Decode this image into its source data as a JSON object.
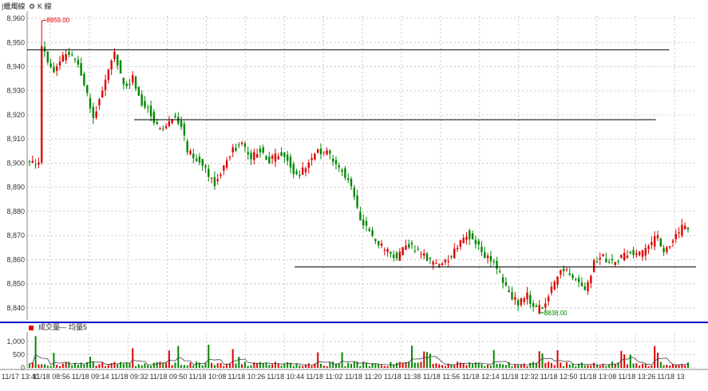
{
  "header": {
    "label_left": "|蠟燭線",
    "label_kline": "K 線",
    "icon": "gear-icon"
  },
  "volume_legend": {
    "volume_label": "成交量",
    "avg_label": "均量5",
    "volume_color": "#dd0000",
    "avg_color": "#444444"
  },
  "chart_data": {
    "type": "candlestick",
    "price_axis": {
      "ticks": [
        "8,960",
        "8,950",
        "8,940",
        "8,930",
        "8,920",
        "8,910",
        "8,900",
        "8,890",
        "8,880",
        "8,870",
        "8,860",
        "8,850",
        "8,840"
      ],
      "ylim": [
        8835,
        8961
      ]
    },
    "volume_axis": {
      "ticks": [
        "1,000",
        "500",
        "0"
      ],
      "ylim": [
        0,
        1300
      ]
    },
    "x_ticks": [
      "11/17 13:40",
      "11/18 08:56",
      "11/18 09:14",
      "11/18 09:32",
      "11/18 09:50",
      "11/18 10:08",
      "11/18 10:26",
      "11/18 10:44",
      "11/18 11:02",
      "11/18 11:20",
      "11/18 11:38",
      "11/18 11:56",
      "11/18 12:14",
      "11/18 12:32",
      "11/18 12:50",
      "11/18 13:08",
      "11/18 13:26",
      "11/18 13"
    ],
    "annotations": {
      "high": "8959.00",
      "low": "8838.00",
      "high_value": 8959,
      "low_value": 8838
    },
    "hlines": [
      {
        "price": 8947,
        "from": 0.0,
        "to": 0.96
      },
      {
        "price": 8918,
        "from": 0.16,
        "to": 0.94
      },
      {
        "price": 8857,
        "from": 0.4,
        "to": 1.0
      }
    ],
    "close_path": [
      [
        0,
        8900
      ],
      [
        3,
        8900
      ],
      [
        4,
        8948
      ],
      [
        8,
        8937
      ],
      [
        12,
        8946
      ],
      [
        16,
        8942
      ],
      [
        19,
        8928
      ],
      [
        21,
        8919
      ],
      [
        24,
        8930
      ],
      [
        28,
        8946
      ],
      [
        31,
        8932
      ],
      [
        34,
        8935
      ],
      [
        37,
        8925
      ],
      [
        39,
        8924
      ],
      [
        41,
        8916
      ],
      [
        44,
        8915
      ],
      [
        47,
        8919
      ],
      [
        50,
        8915
      ],
      [
        52,
        8905
      ],
      [
        55,
        8902
      ],
      [
        58,
        8897
      ],
      [
        61,
        8892
      ],
      [
        64,
        8899
      ],
      [
        67,
        8906
      ],
      [
        70,
        8907
      ],
      [
        73,
        8902
      ],
      [
        76,
        8906
      ],
      [
        79,
        8901
      ],
      [
        82,
        8904
      ],
      [
        85,
        8902
      ],
      [
        88,
        8894
      ],
      [
        91,
        8898
      ],
      [
        94,
        8905
      ],
      [
        97,
        8905
      ],
      [
        100,
        8902
      ],
      [
        103,
        8897
      ],
      [
        106,
        8890
      ],
      [
        109,
        8876
      ],
      [
        112,
        8872
      ],
      [
        115,
        8866
      ],
      [
        118,
        8864
      ],
      [
        121,
        8861
      ],
      [
        124,
        8867
      ],
      [
        127,
        8864
      ],
      [
        130,
        8862
      ],
      [
        133,
        8858
      ],
      [
        136,
        8858
      ],
      [
        139,
        8862
      ],
      [
        142,
        8867
      ],
      [
        144,
        8871
      ],
      [
        147,
        8867
      ],
      [
        150,
        8862
      ],
      [
        153,
        8858
      ],
      [
        155,
        8854
      ],
      [
        158,
        8846
      ],
      [
        161,
        8842
      ],
      [
        164,
        8845
      ],
      [
        167,
        8839
      ],
      [
        170,
        8842
      ],
      [
        173,
        8851
      ],
      [
        175,
        8857
      ],
      [
        178,
        8855
      ],
      [
        181,
        8850
      ],
      [
        183,
        8846
      ],
      [
        186,
        8859
      ],
      [
        189,
        8861
      ],
      [
        192,
        8859
      ],
      [
        195,
        8861
      ],
      [
        198,
        8863
      ],
      [
        201,
        8862
      ],
      [
        204,
        8865
      ],
      [
        207,
        8870
      ],
      [
        209,
        8862
      ],
      [
        212,
        8868
      ],
      [
        215,
        8873
      ],
      [
        217,
        8874
      ]
    ],
    "high_index": 4,
    "low_index": 168
  }
}
